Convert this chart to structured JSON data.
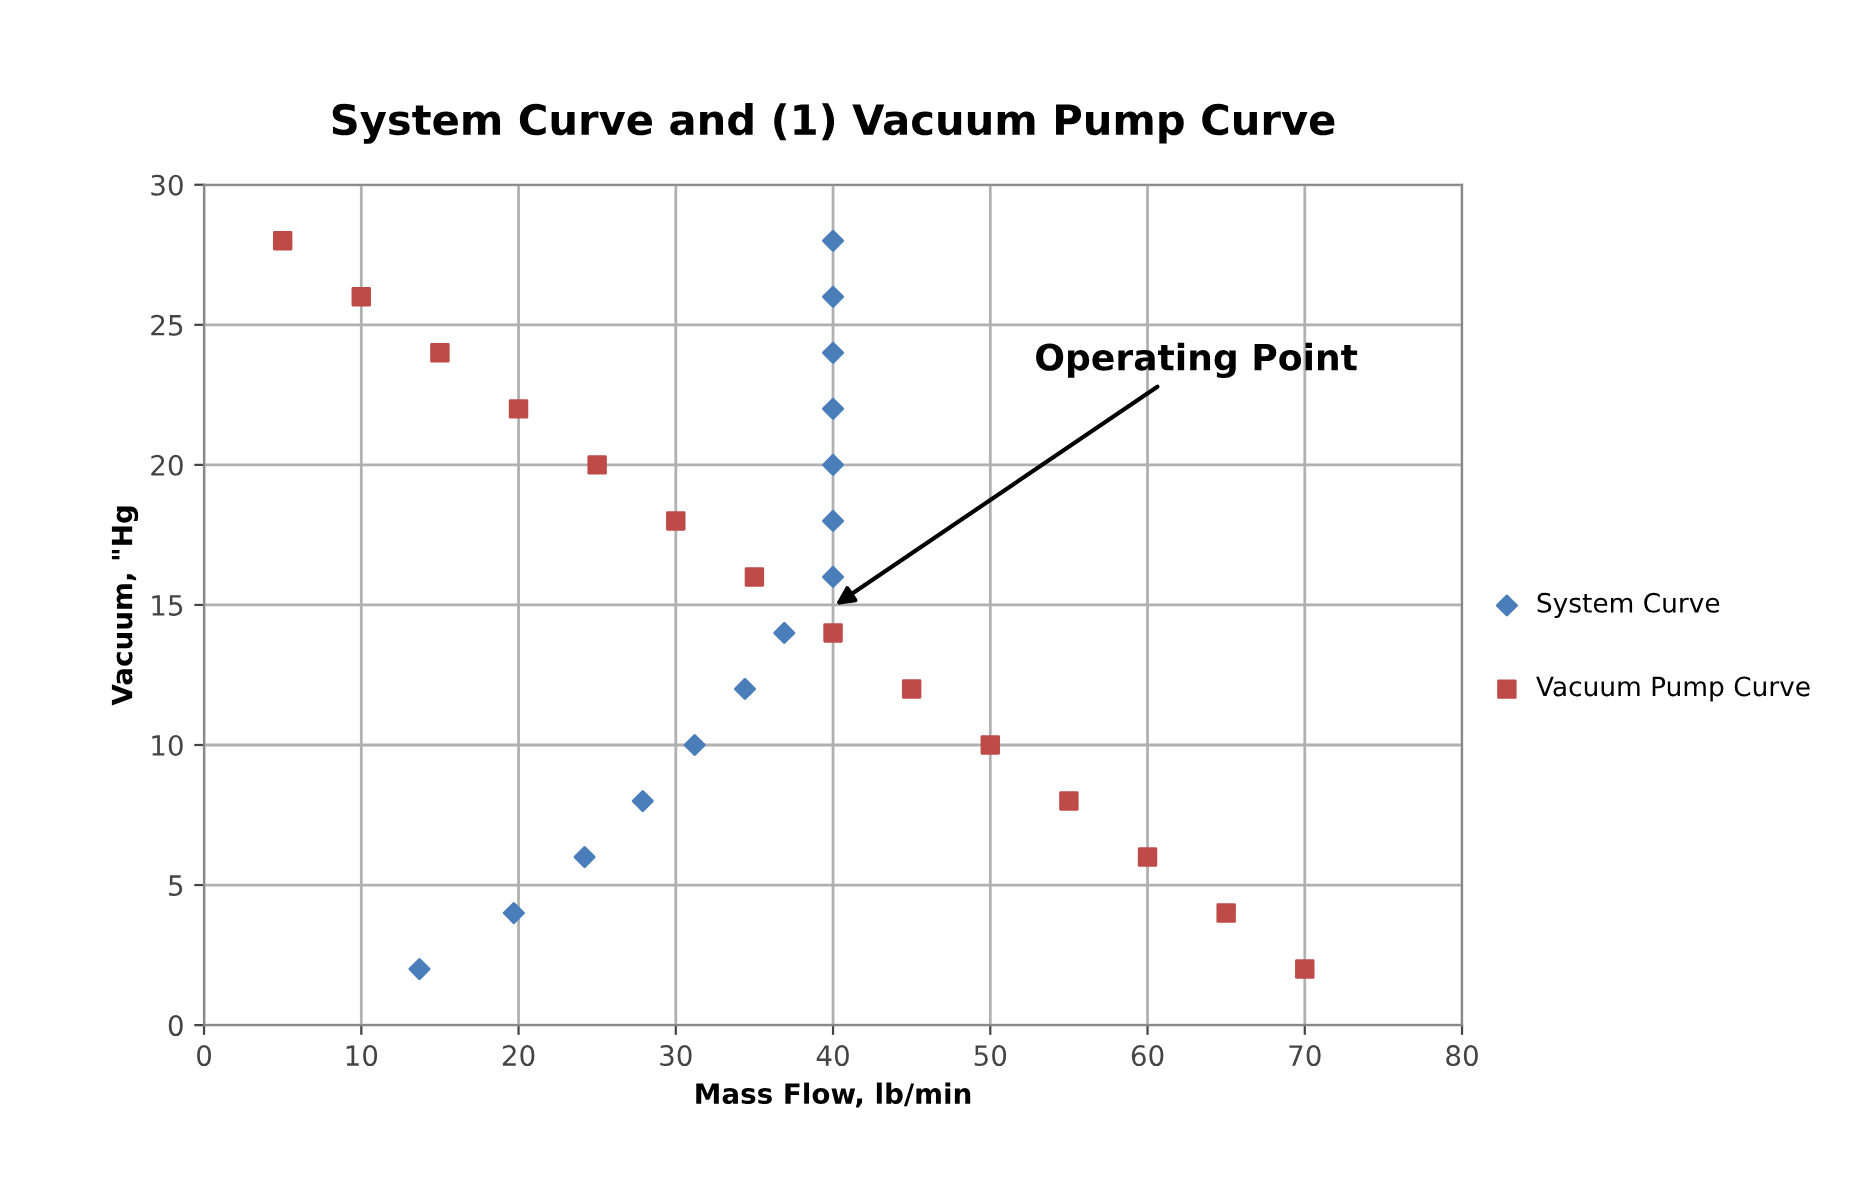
{
  "chart_data": {
    "type": "scatter",
    "title": "System Curve and (1) Vacuum Pump Curve",
    "xlabel": "Mass Flow, lb/min",
    "ylabel": "Vacuum, \"Hg",
    "series": [
      {
        "name": "System Curve",
        "color": "#4a7ebb",
        "marker": "diamond",
        "x": [
          13.7,
          19.7,
          24.2,
          27.9,
          31.2,
          34.4,
          36.9,
          40,
          40,
          40,
          40,
          40,
          40,
          40
        ],
        "values": [
          2,
          4,
          6,
          8,
          10,
          12,
          14,
          16,
          18,
          20,
          22,
          24,
          26,
          28
        ]
      },
      {
        "name": "Vacuum Pump Curve",
        "color": "#be4b48",
        "marker": "square",
        "x": [
          5,
          10,
          15,
          20,
          25,
          30,
          35,
          40,
          45,
          50,
          55,
          60,
          65,
          70
        ],
        "values": [
          28,
          26,
          24,
          22,
          20,
          18,
          16,
          14,
          12,
          10,
          8,
          6,
          4,
          2
        ]
      }
    ],
    "annotations": [
      "Operating Point"
    ],
    "xlim": [
      0,
      80
    ],
    "xticks": [
      0,
      10,
      20,
      30,
      40,
      50,
      60,
      70,
      80
    ],
    "ylim": [
      0,
      30
    ],
    "yticks": [
      0,
      5,
      10,
      15,
      20,
      25,
      30
    ],
    "grid": true,
    "legend": "right"
  }
}
